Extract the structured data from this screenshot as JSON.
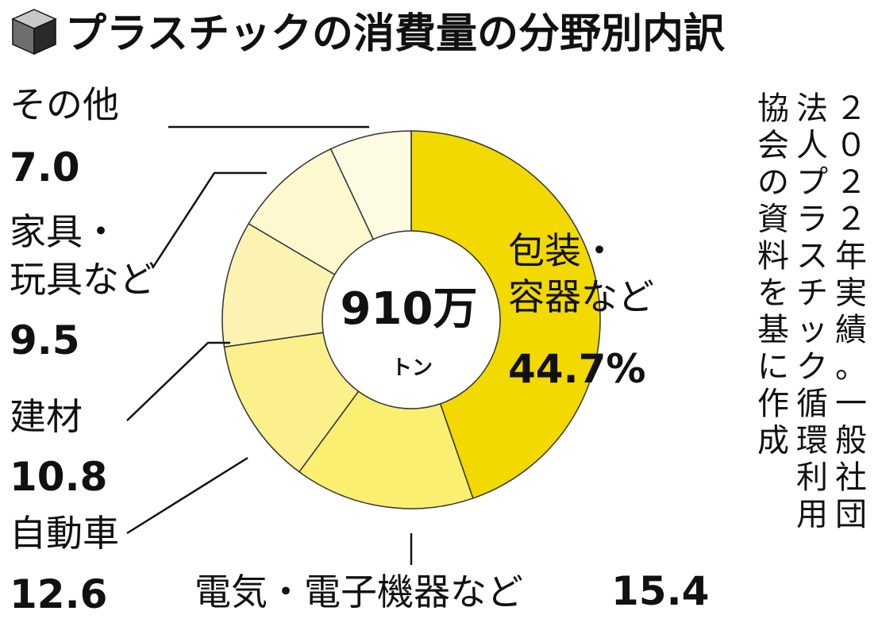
{
  "title": "プラスチックの消費量の分野別内訳",
  "icon": "cube-icon",
  "chart_data": {
    "type": "pie",
    "donut": true,
    "total_label": "910万",
    "total_unit": "トン",
    "unit_suffix": "%",
    "slices": [
      {
        "label": "包装・容器など",
        "label_lines": [
          "包装・",
          "容器など"
        ],
        "value": 44.7,
        "value_text": "44.7%",
        "color": "#f2d900"
      },
      {
        "label": "電気・電子機器など",
        "label_lines": [
          "電気・電子機器など"
        ],
        "value": 15.4,
        "value_text": "15.4",
        "color": "#faef70"
      },
      {
        "label": "自動車",
        "label_lines": [
          "自動車"
        ],
        "value": 12.6,
        "value_text": "12.6",
        "color": "#fbf08c"
      },
      {
        "label": "建材",
        "label_lines": [
          "建材"
        ],
        "value": 10.8,
        "value_text": "10.8",
        "color": "#fcf3b2"
      },
      {
        "label": "家具・玩具など",
        "label_lines": [
          "家具・",
          "玩具など"
        ],
        "value": 9.5,
        "value_text": "9.5",
        "color": "#fdf8ce"
      },
      {
        "label": "その他",
        "label_lines": [
          "その他"
        ],
        "value": 7.0,
        "value_text": "7.0",
        "color": "#fefbe3"
      }
    ]
  },
  "source": {
    "columns": [
      "２０２２年実績。一般社団",
      "法人プラスチック循環利用",
      "協会の資料を基に作成"
    ]
  },
  "colors": {
    "icon_top": "#c8c8c8",
    "icon_left": "#6e6e6e",
    "icon_right": "#2a2a2a",
    "outline": "#333333",
    "text": "#111111"
  }
}
